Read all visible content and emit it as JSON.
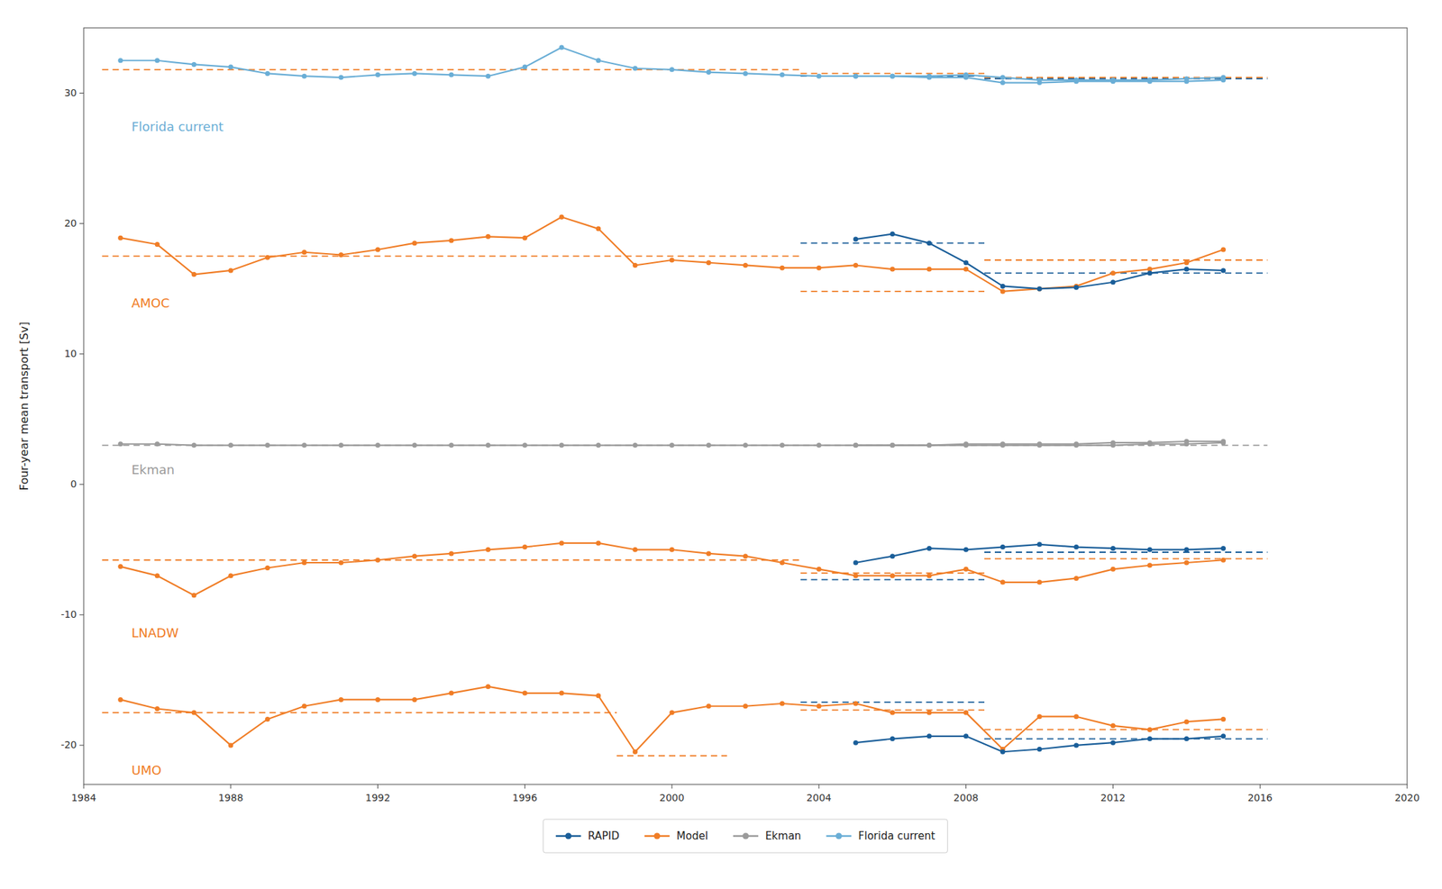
{
  "chart_data": {
    "type": "line",
    "ylabel": "Four-year mean transport [Sv]",
    "xlim": [
      1984,
      2020
    ],
    "xticks": [
      1984,
      1988,
      1992,
      1996,
      2000,
      2004,
      2008,
      2012,
      2016,
      2020
    ],
    "ylim": [
      -23,
      35
    ],
    "yticks": [
      -20,
      -10,
      0,
      10,
      20,
      30
    ],
    "grid": false,
    "legend": "bottom",
    "legend_entries": [
      {
        "name": "RAPID",
        "color": "#1a5e99",
        "marker": "circle"
      },
      {
        "name": "Model",
        "color": "#f07d26",
        "marker": "circle"
      },
      {
        "name": "Ekman",
        "color": "#9b9b9b",
        "marker": "circle"
      },
      {
        "name": "Florida current",
        "color": "#6aaed6",
        "marker": "circle"
      }
    ],
    "series": [
      {
        "color": "#6aaed6",
        "marker": "circle",
        "line_style": "solid",
        "x": [
          1985,
          1986,
          1987,
          1988,
          1989,
          1990,
          1991,
          1992,
          1993,
          1994,
          1995,
          1996,
          1997,
          1998,
          1999,
          2000,
          2001,
          2002,
          2003,
          2004,
          2005,
          2006,
          2007,
          2008,
          2009,
          2010,
          2011,
          2012,
          2013,
          2014,
          2015
        ],
        "values": [
          32.5,
          32.5,
          32.2,
          32.0,
          31.5,
          31.3,
          31.2,
          31.4,
          31.5,
          31.4,
          31.3,
          32.0,
          33.5,
          32.5,
          31.9,
          31.8,
          31.6,
          31.5,
          31.4,
          31.3,
          31.3,
          31.3,
          31.3,
          31.4,
          31.2,
          31.0,
          31.0,
          31.0,
          31.0,
          31.1,
          31.2
        ]
      },
      {
        "color": "#6aaed6",
        "marker": "circle",
        "line_style": "solid",
        "x": [
          2005,
          2006,
          2007,
          2008,
          2009,
          2010,
          2011,
          2012,
          2013,
          2014,
          2015
        ],
        "values": [
          31.3,
          31.3,
          31.2,
          31.2,
          30.8,
          30.8,
          30.9,
          30.9,
          30.9,
          30.9,
          31.0
        ]
      },
      {
        "color": "#f07d26",
        "marker": "circle",
        "line_style": "solid",
        "x": [
          1985,
          1986,
          1987,
          1988,
          1989,
          1990,
          1991,
          1992,
          1993,
          1994,
          1995,
          1996,
          1997,
          1998,
          1999,
          2000,
          2001,
          2002,
          2003,
          2004,
          2005,
          2006,
          2007,
          2008,
          2009,
          2010,
          2011,
          2012,
          2013,
          2014,
          2015
        ],
        "values": [
          18.9,
          18.4,
          16.1,
          16.4,
          17.4,
          17.8,
          17.6,
          18.0,
          18.5,
          18.7,
          19.0,
          18.9,
          20.5,
          19.6,
          16.8,
          17.2,
          17.0,
          16.8,
          16.6,
          16.6,
          16.8,
          16.5,
          16.5,
          16.5,
          14.8,
          15.0,
          15.2,
          16.2,
          16.5,
          17.0,
          18.0
        ]
      },
      {
        "color": "#1a5e99",
        "marker": "circle",
        "line_style": "solid",
        "x": [
          2005,
          2006,
          2007,
          2008,
          2009,
          2010,
          2011,
          2012,
          2013,
          2014,
          2015
        ],
        "values": [
          18.8,
          19.2,
          18.5,
          17.0,
          15.2,
          15.0,
          15.1,
          15.5,
          16.2,
          16.5,
          16.4
        ]
      },
      {
        "color": "#9b9b9b",
        "marker": "circle",
        "line_style": "solid",
        "x": [
          1985,
          1986,
          1987,
          1988,
          1989,
          1990,
          1991,
          1992,
          1993,
          1994,
          1995,
          1996,
          1997,
          1998,
          1999,
          2000,
          2001,
          2002,
          2003,
          2004,
          2005,
          2006,
          2007,
          2008,
          2009,
          2010,
          2011,
          2012,
          2013,
          2014,
          2015
        ],
        "values": [
          3.1,
          3.1,
          3.0,
          3.0,
          3.0,
          3.0,
          3.0,
          3.0,
          3.0,
          3.0,
          3.0,
          3.0,
          3.0,
          3.0,
          3.0,
          3.0,
          3.0,
          3.0,
          3.0,
          3.0,
          3.0,
          3.0,
          3.0,
          3.0,
          3.0,
          3.0,
          3.0,
          3.0,
          3.1,
          3.1,
          3.2
        ]
      },
      {
        "color": "#9b9b9b",
        "marker": "circle",
        "line_style": "solid",
        "x": [
          2005,
          2006,
          2007,
          2008,
          2009,
          2010,
          2011,
          2012,
          2013,
          2014,
          2015
        ],
        "values": [
          3.0,
          3.0,
          3.0,
          3.1,
          3.1,
          3.1,
          3.1,
          3.2,
          3.2,
          3.3,
          3.3
        ]
      },
      {
        "color": "#f07d26",
        "marker": "circle",
        "line_style": "solid",
        "x": [
          1985,
          1986,
          1987,
          1988,
          1989,
          1990,
          1991,
          1992,
          1993,
          1994,
          1995,
          1996,
          1997,
          1998,
          1999,
          2000,
          2001,
          2002,
          2003,
          2004,
          2005,
          2006,
          2007,
          2008,
          2009,
          2010,
          2011,
          2012,
          2013,
          2014,
          2015
        ],
        "values": [
          -6.3,
          -7.0,
          -8.5,
          -7.0,
          -6.4,
          -6.0,
          -6.0,
          -5.8,
          -5.5,
          -5.3,
          -5.0,
          -4.8,
          -4.5,
          -4.5,
          -5.0,
          -5.0,
          -5.3,
          -5.5,
          -6.0,
          -6.5,
          -7.0,
          -7.0,
          -7.0,
          -6.5,
          -7.5,
          -7.5,
          -7.2,
          -6.5,
          -6.2,
          -6.0,
          -5.8
        ]
      },
      {
        "color": "#1a5e99",
        "marker": "circle",
        "line_style": "solid",
        "x": [
          2005,
          2006,
          2007,
          2008,
          2009,
          2010,
          2011,
          2012,
          2013,
          2014,
          2015
        ],
        "values": [
          -6.0,
          -5.5,
          -4.9,
          -5.0,
          -4.8,
          -4.6,
          -4.8,
          -4.9,
          -5.0,
          -5.0,
          -4.9
        ]
      },
      {
        "color": "#f07d26",
        "marker": "circle",
        "line_style": "solid",
        "x": [
          1985,
          1986,
          1987,
          1988,
          1989,
          1990,
          1991,
          1992,
          1993,
          1994,
          1995,
          1996,
          1997,
          1998,
          1999,
          2000,
          2001,
          2002,
          2003,
          2004,
          2005,
          2006,
          2007,
          2008,
          2009,
          2010,
          2011,
          2012,
          2013,
          2014,
          2015
        ],
        "values": [
          -16.5,
          -17.2,
          -17.5,
          -20.0,
          -18.0,
          -17.0,
          -16.5,
          -16.5,
          -16.5,
          -16.0,
          -15.5,
          -16.0,
          -16.0,
          -16.2,
          -20.5,
          -17.5,
          -17.0,
          -17.0,
          -16.8,
          -17.0,
          -16.8,
          -17.5,
          -17.5,
          -17.5,
          -20.3,
          -17.8,
          -17.8,
          -18.5,
          -18.8,
          -18.2,
          -18.0
        ]
      },
      {
        "color": "#1a5e99",
        "marker": "circle",
        "line_style": "solid",
        "x": [
          2005,
          2006,
          2007,
          2008,
          2009,
          2010,
          2011,
          2012,
          2013,
          2014,
          2015
        ],
        "values": [
          -19.8,
          -19.5,
          -19.3,
          -19.3,
          -20.5,
          -20.3,
          -20.0,
          -19.8,
          -19.5,
          -19.5,
          -19.3
        ]
      }
    ],
    "mean_lines": [
      {
        "x1": 1984.5,
        "x2": 2003.5,
        "y": 17.5,
        "color": "#f07d26",
        "line_style": "dashed"
      },
      {
        "x1": 2003.5,
        "x2": 2008.5,
        "y": 14.8,
        "color": "#f07d26",
        "line_style": "dashed"
      },
      {
        "x1": 2008.5,
        "x2": 2016.2,
        "y": 17.2,
        "color": "#f07d26",
        "line_style": "dashed"
      },
      {
        "x1": 2003.5,
        "x2": 2008.5,
        "y": 18.5,
        "color": "#1a5e99",
        "line_style": "dashed"
      },
      {
        "x1": 2008.5,
        "x2": 2016.2,
        "y": 16.2,
        "color": "#1a5e99",
        "line_style": "dashed"
      },
      {
        "x1": 1984.5,
        "x2": 2003.5,
        "y": 31.8,
        "color": "#f07d26",
        "line_style": "dashed"
      },
      {
        "x1": 2003.5,
        "x2": 2008.5,
        "y": 31.5,
        "color": "#f07d26",
        "line_style": "dashed"
      },
      {
        "x1": 2008.5,
        "x2": 2016.2,
        "y": 31.2,
        "color": "#f07d26",
        "line_style": "dashed"
      },
      {
        "x1": 2003.5,
        "x2": 2008.5,
        "y": 31.3,
        "color": "#1a5e99",
        "line_style": "dashed"
      },
      {
        "x1": 2008.5,
        "x2": 2016.2,
        "y": 31.1,
        "color": "#1a5e99",
        "line_style": "dashed"
      },
      {
        "x1": 1984.5,
        "x2": 2016.2,
        "y": 3.0,
        "color": "#9b9b9b",
        "line_style": "dashed"
      },
      {
        "x1": 1984.5,
        "x2": 2003.5,
        "y": -5.8,
        "color": "#f07d26",
        "line_style": "dashed"
      },
      {
        "x1": 2003.5,
        "x2": 2008.5,
        "y": -6.8,
        "color": "#f07d26",
        "line_style": "dashed"
      },
      {
        "x1": 2008.5,
        "x2": 2016.2,
        "y": -5.7,
        "color": "#f07d26",
        "line_style": "dashed"
      },
      {
        "x1": 2003.5,
        "x2": 2008.5,
        "y": -7.3,
        "color": "#1a5e99",
        "line_style": "dashed"
      },
      {
        "x1": 2008.5,
        "x2": 2016.2,
        "y": -5.2,
        "color": "#1a5e99",
        "line_style": "dashed"
      },
      {
        "x1": 1984.5,
        "x2": 1998.5,
        "y": -17.5,
        "color": "#f07d26",
        "line_style": "dashed"
      },
      {
        "x1": 1998.5,
        "x2": 2001.5,
        "y": -20.8,
        "color": "#f07d26",
        "line_style": "dashed"
      },
      {
        "x1": 2003.5,
        "x2": 2008.5,
        "y": -17.3,
        "color": "#f07d26",
        "line_style": "dashed"
      },
      {
        "x1": 2008.5,
        "x2": 2016.2,
        "y": -18.8,
        "color": "#f07d26",
        "line_style": "dashed"
      },
      {
        "x1": 2003.5,
        "x2": 2008.5,
        "y": -16.7,
        "color": "#1a5e99",
        "line_style": "dashed"
      },
      {
        "x1": 2008.5,
        "x2": 2016.2,
        "y": -19.5,
        "color": "#1a5e99",
        "line_style": "dashed"
      }
    ],
    "annotations": [
      {
        "text": "Florida current",
        "x": 1985.3,
        "y": 27.8,
        "color": "#6aaed6"
      },
      {
        "text": "AMOC",
        "x": 1985.3,
        "y": 14.3,
        "color": "#f07d26"
      },
      {
        "text": "Ekman",
        "x": 1985.3,
        "y": 1.5,
        "color": "#9b9b9b"
      },
      {
        "text": "LNADW",
        "x": 1985.3,
        "y": -11.0,
        "color": "#f07d26"
      },
      {
        "text": "UMO",
        "x": 1985.3,
        "y": -21.5,
        "color": "#f07d26"
      }
    ]
  }
}
